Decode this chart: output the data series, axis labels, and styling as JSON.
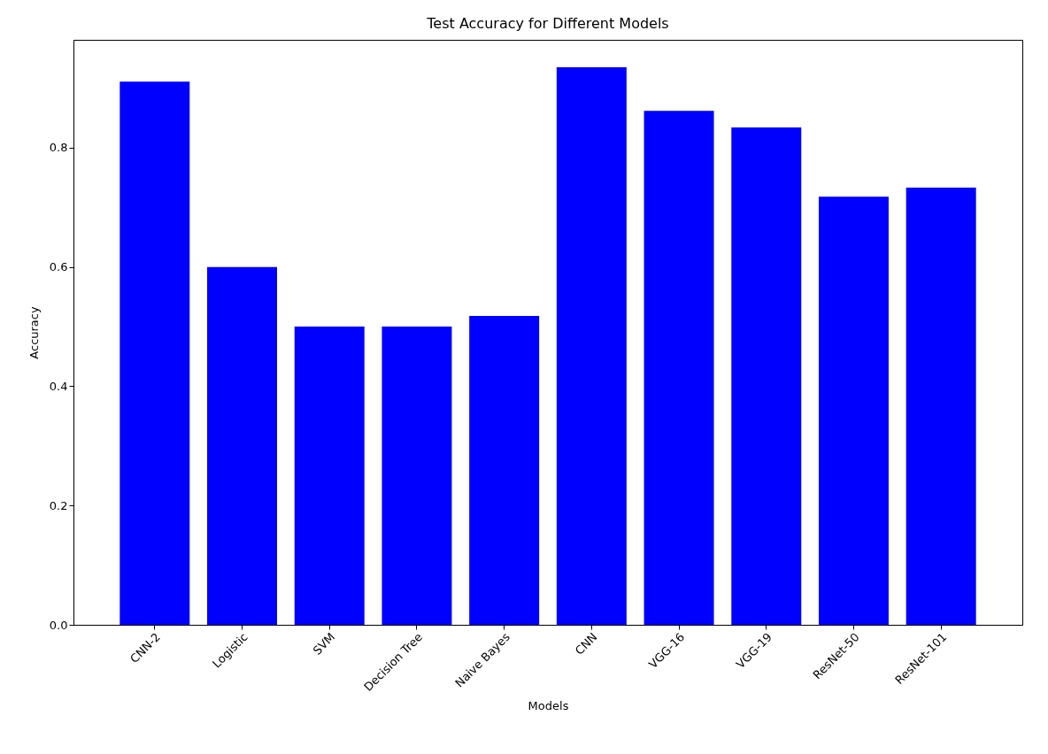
{
  "chart_data": {
    "type": "bar",
    "title": "Test Accuracy for Different Models",
    "xlabel": "Models",
    "ylabel": "Accuracy",
    "categories": [
      "CNN-2",
      "Logistic",
      "SVM",
      "Decision Tree",
      "Naive Bayes",
      "CNN",
      "VGG-16",
      "VGG-19",
      "ResNet-50",
      "ResNet-101"
    ],
    "values": [
      0.911,
      0.6,
      0.5,
      0.5,
      0.518,
      0.935,
      0.862,
      0.834,
      0.718,
      0.733
    ],
    "color": "#0000ff",
    "ylim": [
      0,
      0.981
    ],
    "yticks": [
      {
        "value": 0,
        "label": "0.0"
      },
      {
        "value": 0.2,
        "label": "0.2"
      },
      {
        "value": 0.4,
        "label": "0.4"
      },
      {
        "value": 0.6,
        "label": "0.6"
      },
      {
        "value": 0.8,
        "label": "0.8"
      }
    ],
    "grid": false
  }
}
